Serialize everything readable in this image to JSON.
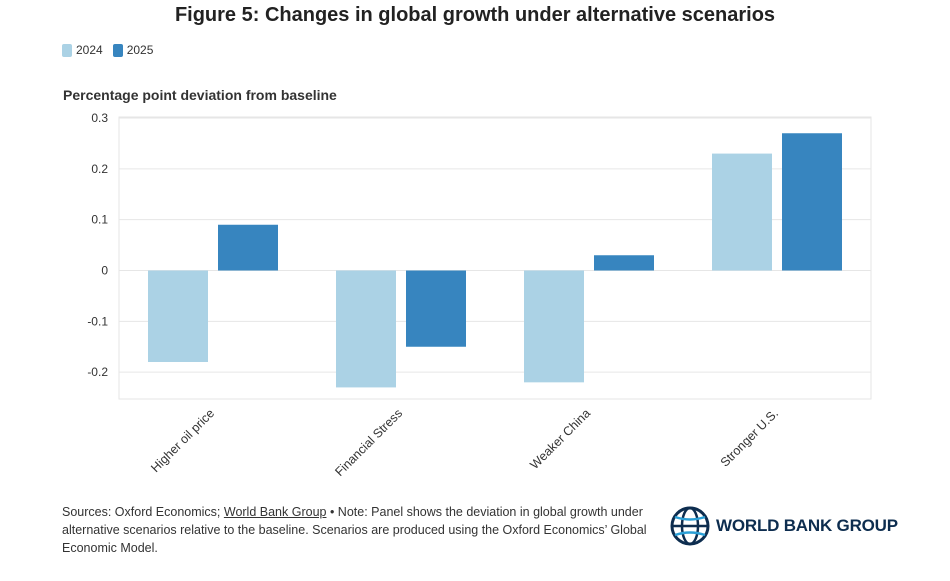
{
  "title": "Figure 5: Changes in global growth under alternative scenarios",
  "y_unit": "Percentage point deviation from baseline",
  "legend": [
    {
      "label": "2024",
      "color": "#abd2e5"
    },
    {
      "label": "2025",
      "color": "#3785bf"
    }
  ],
  "chart_data": {
    "type": "bar",
    "categories": [
      "Higher oil price",
      "Financial Stress",
      "Weaker China",
      "Stronger U.S."
    ],
    "series": [
      {
        "name": "2024",
        "color": "#abd2e5",
        "values": [
          -0.18,
          -0.23,
          -0.22,
          0.23
        ]
      },
      {
        "name": "2025",
        "color": "#3785bf",
        "values": [
          0.09,
          -0.15,
          0.03,
          0.27
        ]
      }
    ],
    "ylim": [
      -0.25,
      0.3
    ],
    "yticks": [
      0.3,
      0.2,
      0.1,
      0,
      -0.1,
      -0.2
    ],
    "ytick_labels": [
      "0.3",
      "0.2",
      "0.1",
      "0",
      "-0.1",
      "-0.2"
    ],
    "grid": true,
    "legend_position": "top-left"
  },
  "footer": {
    "sources_prefix": "Sources: Oxford Economics; ",
    "sources_link": "World Bank Group",
    "note": " • Note: Panel shows the deviation in global growth under alternative scenarios relative to the baseline. Scenarios are produced using the Oxford Economics’ Global Economic Model."
  },
  "logo": {
    "text": "WORLD BANK GROUP",
    "color": "#0d2d4f"
  }
}
